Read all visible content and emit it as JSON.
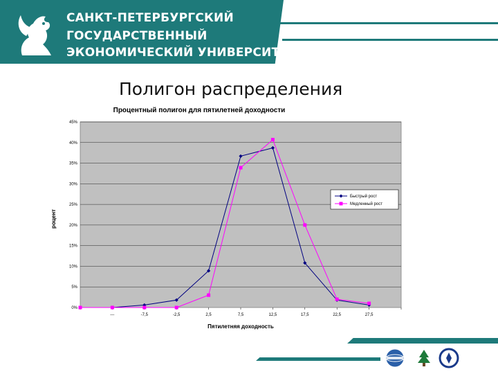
{
  "header": {
    "university_line1": "САНКТ-ПЕТЕРБУРГСКИЙ",
    "university_line2": "ГОСУДАРСТВЕННЫЙ",
    "university_line3": "ЭКОНОМИЧЕСКИЙ УНИВЕРСИТЕТ"
  },
  "slide": {
    "title": "Полигон распределения"
  },
  "colors": {
    "brand": "#1e7a7a",
    "plot_bg": "#c0c0c0",
    "series1": "#000080",
    "series2": "#ff00ff"
  },
  "chart_data": {
    "type": "line",
    "title": "Процентный полигон для пятилетней доходности",
    "xlabel": "Пятилетняя доходность",
    "ylabel": "роцент",
    "categories": [
      "",
      "---",
      "-7,5",
      "-2,5",
      "2,5",
      "7,5",
      "12,5",
      "17,5",
      "22,5",
      "27,5",
      ""
    ],
    "y_ticks": [
      "0%",
      "5%",
      "10%",
      "15%",
      "20%",
      "25%",
      "30%",
      "35%",
      "40%",
      "45%"
    ],
    "ylim": [
      0,
      0.45
    ],
    "grid": "horizontal",
    "legend_position": "right",
    "series": [
      {
        "name": "Быстрый рост",
        "values": [
          null,
          0.0,
          0.006,
          0.018,
          0.089,
          0.367,
          0.387,
          0.108,
          0.018,
          0.006,
          null
        ]
      },
      {
        "name": "Медленный рост",
        "values": [
          0.0,
          0.0,
          0.0,
          0.0,
          0.03,
          0.339,
          0.407,
          0.2,
          0.02,
          0.01,
          null
        ]
      }
    ]
  }
}
